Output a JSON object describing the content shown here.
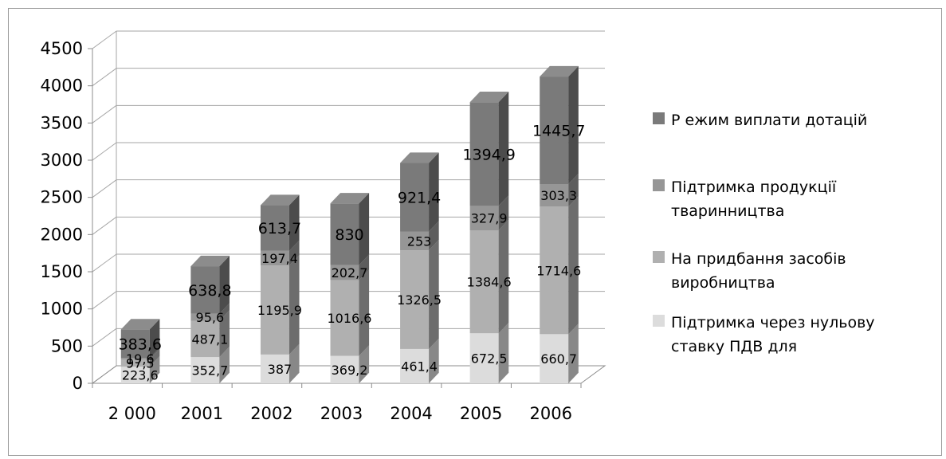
{
  "chart_data": {
    "type": "bar",
    "stacked": true,
    "three_d": true,
    "categories": [
      "2 000",
      "2001",
      "2002",
      "2003",
      "2004",
      "2005",
      "2006"
    ],
    "series": [
      {
        "name": "Підтримка через нульову ставку ПДВ для",
        "values": [
          223.6,
          352.7,
          387,
          369.2,
          461.4,
          672.5,
          660.7
        ],
        "labels": [
          "223,6",
          "352,7",
          "387",
          "369,2",
          "461,4",
          "672,5",
          "660,7"
        ],
        "color": "#dcdcdc"
      },
      {
        "name": "На придбання засобів виробництва",
        "values": [
          97.5,
          487.1,
          1195.9,
          1016.6,
          1326.5,
          1384.6,
          1714.6
        ],
        "labels": [
          "97,5",
          "487,1",
          "1195,9",
          "1016,6",
          "1326,5",
          "1384,6",
          "1714,6"
        ],
        "color": "#b0b0b0"
      },
      {
        "name": "Підтримка продукції тваринництва",
        "values": [
          19.6,
          95.6,
          197.4,
          202.7,
          253,
          327.9,
          303.3
        ],
        "labels": [
          "19,6",
          "95,6",
          "197,4",
          "202,7",
          "253",
          "327,9",
          "303,3"
        ],
        "color": "#969696"
      },
      {
        "name": "Режим виплати дотацій",
        "values": [
          383.6,
          638.8,
          613.7,
          830,
          921.4,
          1394.9,
          1445.7
        ],
        "labels": [
          "383,6",
          "638,8",
          "613,7",
          "830",
          "921,4",
          "1394,9",
          "1445,7"
        ],
        "color": "#7a7a7a"
      }
    ],
    "legend_lines": [
      [
        "Р ежим виплати дотацій"
      ],
      [
        "Підтримка продукції",
        "тваринництва"
      ],
      [
        "На придбання засобів",
        "виробництва"
      ],
      [
        "Підтримка через нульову",
        "ставку ПДВ для"
      ]
    ],
    "y_ticks": [
      "0",
      "500",
      "1000",
      "1500",
      "2000",
      "2500",
      "3000",
      "3500",
      "4000",
      "4500"
    ],
    "ylim": [
      0,
      4500
    ],
    "grid": true,
    "legend_position": "right"
  }
}
